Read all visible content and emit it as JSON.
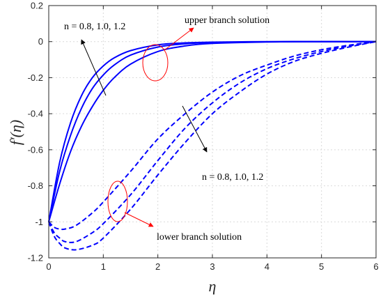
{
  "chart_data": {
    "type": "line",
    "xlabel": "η",
    "ylabel": "f′(η)",
    "xlim": [
      0,
      6
    ],
    "ylim": [
      -1.2,
      0.2
    ],
    "xticks": [
      "0",
      "1",
      "2",
      "3",
      "4",
      "5",
      "6"
    ],
    "yticks": [
      "-1.2",
      "-1",
      "-0.8",
      "-0.6",
      "-0.4",
      "-0.2",
      "0",
      "0.2"
    ],
    "grid": true,
    "line_color": "#0000ff",
    "annotation_color": "#ff0000",
    "series": [
      {
        "branch": "upper",
        "style": "solid",
        "n": 0.8,
        "x": [
          0,
          0.2,
          0.4,
          0.6,
          0.8,
          1.0,
          1.2,
          1.5,
          2.0,
          2.5,
          3.0,
          4.0,
          5.0,
          6.0
        ],
        "y": [
          -1.0,
          -0.67,
          -0.45,
          -0.3,
          -0.2,
          -0.135,
          -0.09,
          -0.05,
          -0.018,
          -0.007,
          -0.003,
          0,
          0,
          0
        ]
      },
      {
        "branch": "upper",
        "style": "solid",
        "n": 1.0,
        "x": [
          0,
          0.2,
          0.4,
          0.6,
          0.8,
          1.0,
          1.2,
          1.5,
          2.0,
          2.5,
          3.0,
          4.0,
          5.0,
          6.0
        ],
        "y": [
          -1.0,
          -0.72,
          -0.52,
          -0.37,
          -0.26,
          -0.185,
          -0.13,
          -0.075,
          -0.03,
          -0.012,
          -0.005,
          -0.001,
          0,
          0
        ]
      },
      {
        "branch": "upper",
        "style": "solid",
        "n": 1.2,
        "x": [
          0,
          0.2,
          0.4,
          0.6,
          0.8,
          1.0,
          1.2,
          1.5,
          2.0,
          2.5,
          3.0,
          4.0,
          5.0,
          6.0
        ],
        "y": [
          -1.0,
          -0.79,
          -0.61,
          -0.47,
          -0.36,
          -0.27,
          -0.2,
          -0.125,
          -0.055,
          -0.024,
          -0.01,
          -0.002,
          0,
          0
        ]
      },
      {
        "branch": "lower",
        "style": "dashed",
        "n": 0.8,
        "x": [
          0,
          0.1,
          0.2,
          0.3,
          0.5,
          0.8,
          1.0,
          1.5,
          2.0,
          2.5,
          3.0,
          3.5,
          4.0,
          4.5,
          5.0,
          5.5,
          6.0
        ],
        "y": [
          -1.0,
          -1.03,
          -1.04,
          -1.04,
          -1.02,
          -0.95,
          -0.89,
          -0.72,
          -0.54,
          -0.4,
          -0.28,
          -0.19,
          -0.13,
          -0.08,
          -0.045,
          -0.02,
          0
        ]
      },
      {
        "branch": "lower",
        "style": "dashed",
        "n": 1.0,
        "x": [
          0,
          0.1,
          0.2,
          0.3,
          0.5,
          0.8,
          1.0,
          1.5,
          2.0,
          2.5,
          3.0,
          3.5,
          4.0,
          4.5,
          5.0,
          5.5,
          6.0
        ],
        "y": [
          -1.0,
          -1.06,
          -1.09,
          -1.11,
          -1.11,
          -1.06,
          -1.01,
          -0.85,
          -0.66,
          -0.48,
          -0.34,
          -0.23,
          -0.15,
          -0.095,
          -0.055,
          -0.025,
          0
        ]
      },
      {
        "branch": "lower",
        "style": "dashed",
        "n": 1.2,
        "x": [
          0,
          0.1,
          0.2,
          0.3,
          0.5,
          0.8,
          1.0,
          1.5,
          2.0,
          2.5,
          3.0,
          3.5,
          4.0,
          4.5,
          5.0,
          5.5,
          6.0
        ],
        "y": [
          -1.0,
          -1.08,
          -1.12,
          -1.145,
          -1.155,
          -1.13,
          -1.09,
          -0.93,
          -0.74,
          -0.56,
          -0.4,
          -0.28,
          -0.18,
          -0.11,
          -0.065,
          -0.03,
          0
        ]
      }
    ],
    "annotations": {
      "upper_params": "n = 0.8, 1.0, 1.2",
      "upper_branch": "upper branch solution",
      "lower_params": "n = 0.8, 1.0, 1.2",
      "lower_branch": "lower branch solution"
    }
  }
}
